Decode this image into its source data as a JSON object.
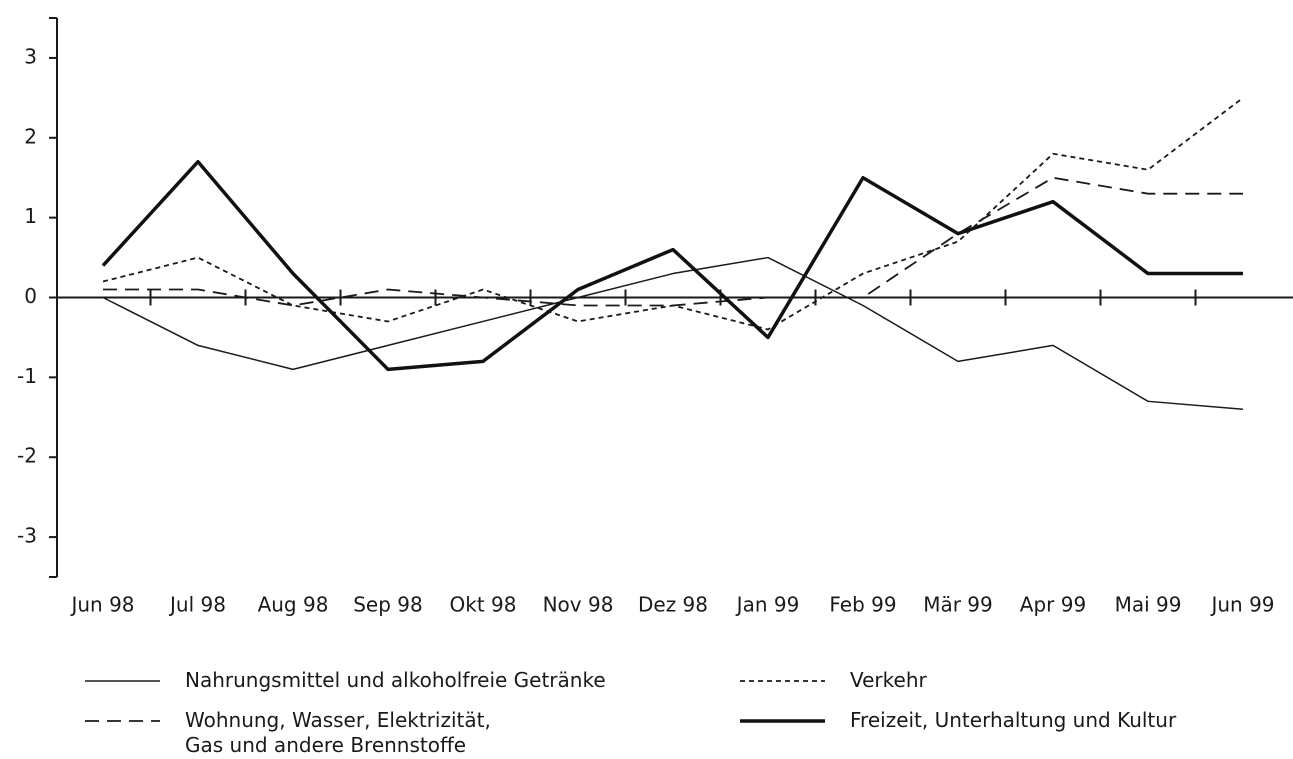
{
  "chart_data": {
    "type": "line",
    "categories": [
      "Jun 98",
      "Jul 98",
      "Aug 98",
      "Sep 98",
      "Okt 98",
      "Nov 98",
      "Dez 98",
      "Jan 99",
      "Feb 99",
      "Mär 99",
      "Apr 99",
      "Mai 99",
      "Jun 99"
    ],
    "series": [
      {
        "name": "Nahrungsmittel und alkoholfreie Getränke",
        "color": "#1a1a1a",
        "line_style": "solid",
        "line_width": 1.5,
        "values": [
          0,
          -0.6,
          -0.9,
          -0.6,
          -0.3,
          0,
          0.3,
          0.5,
          -0.1,
          -0.8,
          -0.6,
          -1.3,
          -1.4
        ]
      },
      {
        "name": "Verkehr",
        "color": "#1a1a1a",
        "line_style": "dotted",
        "line_width": 1.8,
        "values": [
          0.2,
          0.5,
          -0.1,
          -0.3,
          0.1,
          -0.3,
          -0.1,
          -0.4,
          0.3,
          0.7,
          1.8,
          1.6,
          2.5
        ]
      },
      {
        "name": "Wohnung, Wasser, Elektrizität, Gas und andere Brennstoffe",
        "color": "#1a1a1a",
        "line_style": "dashed",
        "line_width": 1.8,
        "values": [
          0.1,
          0.1,
          -0.1,
          0.1,
          0,
          -0.1,
          -0.1,
          0,
          0,
          0.8,
          1.5,
          1.3,
          1.3
        ]
      },
      {
        "name": "Freizeit, Unterhaltung und Kultur",
        "color": "#111111",
        "line_style": "solid",
        "line_width": 3.5,
        "values": [
          0.4,
          1.7,
          0.3,
          -0.9,
          -0.8,
          0.1,
          0.6,
          -0.5,
          1.5,
          0.8,
          1.2,
          0.3,
          0.3
        ]
      }
    ],
    "ylim": [
      -3.5,
      3.5
    ],
    "yticks": [
      -3,
      -2,
      -1,
      0,
      1,
      2,
      3
    ],
    "grid": false
  }
}
